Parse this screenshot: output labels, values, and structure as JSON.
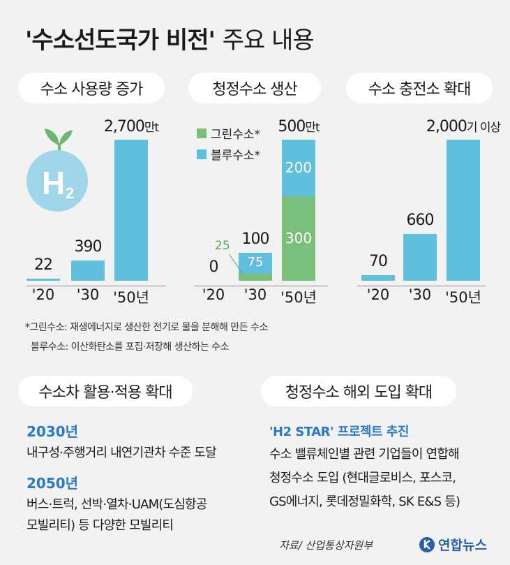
{
  "title": {
    "main": "'수소선도국가 비전'",
    "sub": "주요 내용"
  },
  "colors": {
    "blue": "#5fbfdc",
    "green": "#7bbf7d",
    "accent": "#2a78c6",
    "pill": "#ffffff"
  },
  "icon": {
    "name": "h2-sprout-icon",
    "letter": "H",
    "subscript": "2"
  },
  "chart_data": [
    {
      "type": "bar",
      "title": "수소 사용량 증가",
      "categories": [
        "'20",
        "'30",
        "'50년"
      ],
      "values": [
        22,
        390,
        2700
      ],
      "value_labels": [
        "22",
        "390",
        "2,700"
      ],
      "unit": "만t",
      "ylim": [
        0,
        2700
      ]
    },
    {
      "type": "bar",
      "title": "청정수소 생산",
      "categories": [
        "'20",
        "'30",
        "'50년"
      ],
      "series": [
        {
          "name": "그린수소*",
          "values": [
            0,
            25,
            300
          ]
        },
        {
          "name": "블루수소*",
          "values": [
            0,
            75,
            200
          ]
        }
      ],
      "totals": [
        "0",
        "100",
        "500"
      ],
      "unit": "만t",
      "ylim": [
        0,
        500
      ]
    },
    {
      "type": "bar",
      "title": "수소 충전소 확대",
      "categories": [
        "'20",
        "'30",
        "'50년"
      ],
      "values": [
        70,
        660,
        2000
      ],
      "value_labels": [
        "70",
        "660",
        "2,000"
      ],
      "unit": "기 이상",
      "ylim": [
        0,
        2000
      ]
    }
  ],
  "notes": {
    "green": "*그린수소: 재생에너지로 생산한 전기로 물을 분해해 만든 수소",
    "blue": "블루수소: 이산화탄소를 포집·저장해 생산하는 수소"
  },
  "section_car": {
    "title": "수소차 활용·적용 확대",
    "items": [
      {
        "year": "2030년",
        "lines": [
          "내구성·주행거리 내연기관차 수준 도달"
        ]
      },
      {
        "year": "2050년",
        "lines": [
          "버스·트럭, 선박·열차·UAM(도심항공",
          "모빌리티) 등 다양한 모빌리티"
        ]
      }
    ]
  },
  "section_import": {
    "title": "청정수소 해외 도입 확대",
    "highlight": "'H2 STAR' 프로젝트 추진",
    "lines": [
      "수소 밸류체인별 관련 기업들이 연합해",
      "청정수소 도입 (현대글로비스, 포스코,",
      "GS에너지, 롯데정밀화학, SK E&S 등)"
    ]
  },
  "source": "자료/ 산업통상자원부",
  "logo": "연합뉴스"
}
